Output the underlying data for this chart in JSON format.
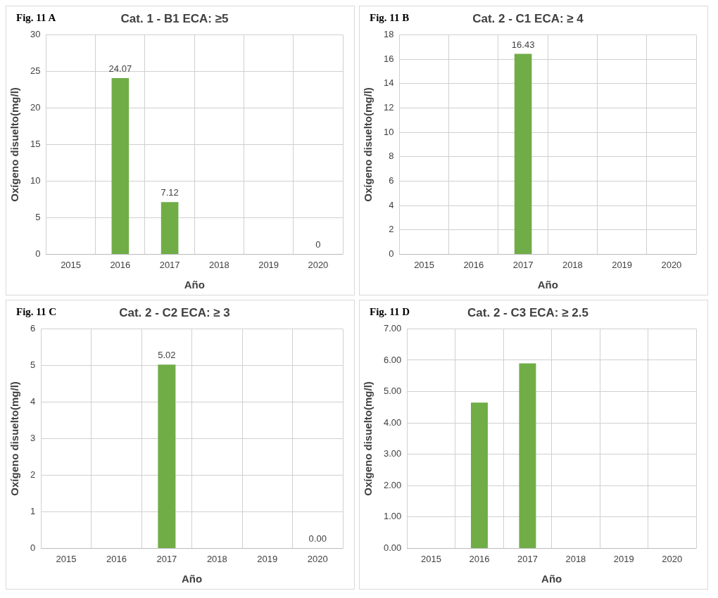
{
  "chart_data": [
    {
      "type": "bar",
      "title": "Cat. 1 - B1 ECA: ≥5",
      "annotations": [
        "Fig. 11 A"
      ],
      "xlabel": "Año",
      "ylabel": "Oxígeno disuelto(mg/l)",
      "categories": [
        "2015",
        "2016",
        "2017",
        "2018",
        "2019",
        "2020"
      ],
      "values": [
        null,
        24.07,
        7.12,
        null,
        null,
        0
      ],
      "color": "#70ad47",
      "ylim": [
        0,
        30
      ],
      "yticks": [
        0,
        5,
        10,
        15,
        20,
        25,
        30
      ],
      "grid": true,
      "data_labels": true
    },
    {
      "type": "bar",
      "title": "Cat. 2 - C1 ECA: ≥ 4",
      "annotations": [
        "Fig. 11 B"
      ],
      "xlabel": "Año",
      "ylabel": "Oxígeno disuelto(mg/l)",
      "categories": [
        "2015",
        "2016",
        "2017",
        "2018",
        "2019",
        "2020"
      ],
      "values": [
        null,
        null,
        16.43,
        null,
        null,
        null
      ],
      "color": "#70ad47",
      "ylim": [
        0,
        18
      ],
      "yticks": [
        0,
        2,
        4,
        6,
        8,
        10,
        12,
        14,
        16,
        18
      ],
      "grid": true,
      "data_labels": true
    },
    {
      "type": "bar",
      "title": "Cat. 2 - C2 ECA: ≥ 3",
      "annotations": [
        "Fig. 11 C"
      ],
      "xlabel": "Año",
      "ylabel": "Oxígeno disuelto(mg/l)",
      "categories": [
        "2015",
        "2016",
        "2017",
        "2018",
        "2019",
        "2020"
      ],
      "values": [
        null,
        null,
        5.02,
        null,
        null,
        0
      ],
      "value_labels": [
        null,
        null,
        "5.02",
        null,
        null,
        "0.00"
      ],
      "color": "#70ad47",
      "ylim": [
        0,
        6
      ],
      "yticks": [
        0,
        1,
        2,
        3,
        4,
        5,
        6
      ],
      "grid": true
    },
    {
      "type": "bar",
      "title": "Cat. 2 - C3 ECA: ≥ 2.5",
      "annotations": [
        "Fig. 11 D"
      ],
      "xlabel": "Año",
      "ylabel": "Oxígeno disuelto(mg/l)",
      "categories": [
        "2015",
        "2016",
        "2017",
        "2018",
        "2019",
        "2020"
      ],
      "values": [
        null,
        4.65,
        5.9,
        null,
        null,
        null
      ],
      "color": "#70ad47",
      "ylim": [
        0,
        7
      ],
      "yticks": [
        {
          "value": 0,
          "label": "0.00"
        },
        {
          "value": 1,
          "label": "1.00"
        },
        {
          "value": 2,
          "label": "2.00"
        },
        {
          "value": 3,
          "label": "3.00"
        },
        {
          "value": 4,
          "label": "4.00"
        },
        {
          "value": 5,
          "label": "5.00"
        },
        {
          "value": 6,
          "label": "6.00"
        },
        {
          "value": 7,
          "label": "7.00"
        }
      ],
      "grid": true
    }
  ]
}
